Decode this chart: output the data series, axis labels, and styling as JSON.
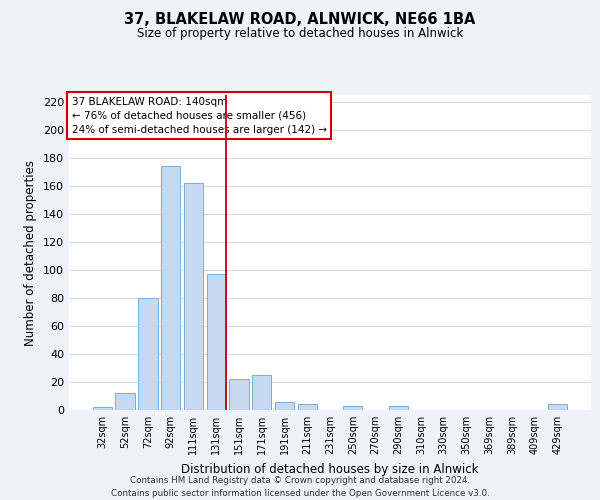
{
  "title": "37, BLAKELAW ROAD, ALNWICK, NE66 1BA",
  "subtitle": "Size of property relative to detached houses in Alnwick",
  "xlabel": "Distribution of detached houses by size in Alnwick",
  "ylabel": "Number of detached properties",
  "bar_labels": [
    "32sqm",
    "52sqm",
    "72sqm",
    "92sqm",
    "111sqm",
    "131sqm",
    "151sqm",
    "171sqm",
    "191sqm",
    "211sqm",
    "231sqm",
    "250sqm",
    "270sqm",
    "290sqm",
    "310sqm",
    "330sqm",
    "350sqm",
    "369sqm",
    "389sqm",
    "409sqm",
    "429sqm"
  ],
  "bar_values": [
    2,
    12,
    80,
    174,
    162,
    97,
    22,
    25,
    6,
    4,
    0,
    3,
    0,
    3,
    0,
    0,
    0,
    0,
    0,
    0,
    4
  ],
  "bar_color": "#c6d9f0",
  "bar_edge_color": "#7bafd4",
  "annotation_box_text": "37 BLAKELAW ROAD: 140sqm\n← 76% of detached houses are smaller (456)\n24% of semi-detached houses are larger (142) →",
  "annotation_box_color": "#ffffff",
  "annotation_box_edge_color": "#cc0000",
  "vline_color": "#cc0000",
  "ylim": [
    0,
    225
  ],
  "yticks": [
    0,
    20,
    40,
    60,
    80,
    100,
    120,
    140,
    160,
    180,
    200,
    220
  ],
  "footer_line1": "Contains HM Land Registry data © Crown copyright and database right 2024.",
  "footer_line2": "Contains public sector information licensed under the Open Government Licence v3.0.",
  "background_color": "#eef2f9",
  "plot_background_color": "#ffffff",
  "grid_color": "#c8d4e8"
}
